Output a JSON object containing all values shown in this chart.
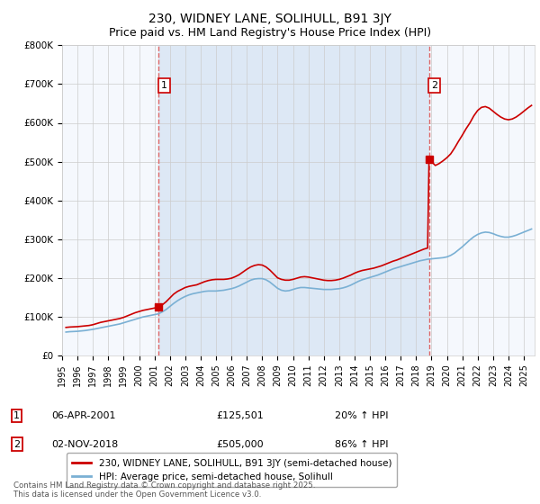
{
  "title": "230, WIDNEY LANE, SOLIHULL, B91 3JY",
  "subtitle": "Price paid vs. HM Land Registry's House Price Index (HPI)",
  "title_fontsize": 10,
  "subtitle_fontsize": 9,
  "ylim": [
    0,
    800000
  ],
  "yticks": [
    0,
    100000,
    200000,
    300000,
    400000,
    500000,
    600000,
    700000,
    800000
  ],
  "ytick_labels": [
    "£0",
    "£100K",
    "£200K",
    "£300K",
    "£400K",
    "£500K",
    "£600K",
    "£700K",
    "£800K"
  ],
  "xlim_start": 1995.0,
  "xlim_end": 2025.7,
  "sale1_x": 2001.27,
  "sale1_y": 125501,
  "sale2_x": 2018.84,
  "sale2_y": 505000,
  "sale1_label": "1",
  "sale2_label": "2",
  "line_color_property": "#cc0000",
  "line_color_hpi": "#7ab0d4",
  "background_color": "#ffffff",
  "chart_bg_color": "#f5f8fd",
  "shade_color": "#dde8f5",
  "grid_color": "#cccccc",
  "dashed_line_color": "#dd6666",
  "legend_label_property": "230, WIDNEY LANE, SOLIHULL, B91 3JY (semi-detached house)",
  "legend_label_hpi": "HPI: Average price, semi-detached house, Solihull",
  "annotation1_num": "1",
  "annotation1_date": "06-APR-2001",
  "annotation1_price": "£125,501",
  "annotation1_hpi": "20% ↑ HPI",
  "annotation2_num": "2",
  "annotation2_date": "02-NOV-2018",
  "annotation2_price": "£505,000",
  "annotation2_hpi": "86% ↑ HPI",
  "footer": "Contains HM Land Registry data © Crown copyright and database right 2025.\nThis data is licensed under the Open Government Licence v3.0.",
  "property_data": [
    [
      1995.25,
      72000
    ],
    [
      1995.5,
      73000
    ],
    [
      1995.75,
      73500
    ],
    [
      1996.0,
      74000
    ],
    [
      1996.25,
      75000
    ],
    [
      1996.5,
      76000
    ],
    [
      1996.75,
      77000
    ],
    [
      1997.0,
      79000
    ],
    [
      1997.25,
      82000
    ],
    [
      1997.5,
      85000
    ],
    [
      1997.75,
      87000
    ],
    [
      1998.0,
      89000
    ],
    [
      1998.25,
      91000
    ],
    [
      1998.5,
      93000
    ],
    [
      1998.75,
      95000
    ],
    [
      1999.0,
      98000
    ],
    [
      1999.25,
      102000
    ],
    [
      1999.5,
      106000
    ],
    [
      1999.75,
      110000
    ],
    [
      2000.0,
      113000
    ],
    [
      2000.25,
      116000
    ],
    [
      2000.5,
      118000
    ],
    [
      2000.75,
      120000
    ],
    [
      2001.0,
      122000
    ],
    [
      2001.27,
      125501
    ],
    [
      2001.5,
      130000
    ],
    [
      2001.75,
      138000
    ],
    [
      2002.0,
      148000
    ],
    [
      2002.25,
      158000
    ],
    [
      2002.5,
      165000
    ],
    [
      2002.75,
      170000
    ],
    [
      2003.0,
      175000
    ],
    [
      2003.25,
      178000
    ],
    [
      2003.5,
      180000
    ],
    [
      2003.75,
      182000
    ],
    [
      2004.0,
      186000
    ],
    [
      2004.25,
      190000
    ],
    [
      2004.5,
      193000
    ],
    [
      2004.75,
      195000
    ],
    [
      2005.0,
      196000
    ],
    [
      2005.25,
      196000
    ],
    [
      2005.5,
      196000
    ],
    [
      2005.75,
      197000
    ],
    [
      2006.0,
      199000
    ],
    [
      2006.25,
      203000
    ],
    [
      2006.5,
      208000
    ],
    [
      2006.75,
      215000
    ],
    [
      2007.0,
      222000
    ],
    [
      2007.25,
      228000
    ],
    [
      2007.5,
      232000
    ],
    [
      2007.75,
      234000
    ],
    [
      2008.0,
      233000
    ],
    [
      2008.25,
      228000
    ],
    [
      2008.5,
      220000
    ],
    [
      2008.75,
      210000
    ],
    [
      2009.0,
      200000
    ],
    [
      2009.25,
      196000
    ],
    [
      2009.5,
      194000
    ],
    [
      2009.75,
      194000
    ],
    [
      2010.0,
      196000
    ],
    [
      2010.25,
      199000
    ],
    [
      2010.5,
      202000
    ],
    [
      2010.75,
      203000
    ],
    [
      2011.0,
      202000
    ],
    [
      2011.25,
      200000
    ],
    [
      2011.5,
      198000
    ],
    [
      2011.75,
      196000
    ],
    [
      2012.0,
      194000
    ],
    [
      2012.25,
      193000
    ],
    [
      2012.5,
      193000
    ],
    [
      2012.75,
      194000
    ],
    [
      2013.0,
      196000
    ],
    [
      2013.25,
      199000
    ],
    [
      2013.5,
      203000
    ],
    [
      2013.75,
      207000
    ],
    [
      2014.0,
      212000
    ],
    [
      2014.25,
      216000
    ],
    [
      2014.5,
      219000
    ],
    [
      2014.75,
      221000
    ],
    [
      2015.0,
      223000
    ],
    [
      2015.25,
      225000
    ],
    [
      2015.5,
      228000
    ],
    [
      2015.75,
      231000
    ],
    [
      2016.0,
      235000
    ],
    [
      2016.25,
      239000
    ],
    [
      2016.5,
      243000
    ],
    [
      2016.75,
      246000
    ],
    [
      2017.0,
      250000
    ],
    [
      2017.25,
      254000
    ],
    [
      2017.5,
      258000
    ],
    [
      2017.75,
      262000
    ],
    [
      2018.0,
      266000
    ],
    [
      2018.25,
      270000
    ],
    [
      2018.5,
      274000
    ],
    [
      2018.75,
      277000
    ],
    [
      2018.84,
      505000
    ],
    [
      2019.0,
      500000
    ],
    [
      2019.25,
      490000
    ],
    [
      2019.5,
      495000
    ],
    [
      2019.75,
      502000
    ],
    [
      2020.0,
      510000
    ],
    [
      2020.25,
      520000
    ],
    [
      2020.5,
      535000
    ],
    [
      2020.75,
      552000
    ],
    [
      2021.0,
      568000
    ],
    [
      2021.25,
      585000
    ],
    [
      2021.5,
      600000
    ],
    [
      2021.75,
      618000
    ],
    [
      2022.0,
      632000
    ],
    [
      2022.25,
      640000
    ],
    [
      2022.5,
      642000
    ],
    [
      2022.75,
      638000
    ],
    [
      2023.0,
      630000
    ],
    [
      2023.25,
      622000
    ],
    [
      2023.5,
      615000
    ],
    [
      2023.75,
      610000
    ],
    [
      2024.0,
      608000
    ],
    [
      2024.25,
      610000
    ],
    [
      2024.5,
      615000
    ],
    [
      2024.75,
      622000
    ],
    [
      2025.0,
      630000
    ],
    [
      2025.25,
      638000
    ],
    [
      2025.5,
      645000
    ]
  ],
  "hpi_data": [
    [
      1995.25,
      60000
    ],
    [
      1995.5,
      61000
    ],
    [
      1995.75,
      61500
    ],
    [
      1996.0,
      62000
    ],
    [
      1996.25,
      63000
    ],
    [
      1996.5,
      64000
    ],
    [
      1996.75,
      65500
    ],
    [
      1997.0,
      67000
    ],
    [
      1997.25,
      69000
    ],
    [
      1997.5,
      71000
    ],
    [
      1997.75,
      73000
    ],
    [
      1998.0,
      75000
    ],
    [
      1998.25,
      77000
    ],
    [
      1998.5,
      79000
    ],
    [
      1998.75,
      81000
    ],
    [
      1999.0,
      84000
    ],
    [
      1999.25,
      87000
    ],
    [
      1999.5,
      90000
    ],
    [
      1999.75,
      93000
    ],
    [
      2000.0,
      96000
    ],
    [
      2000.25,
      99000
    ],
    [
      2000.5,
      101000
    ],
    [
      2000.75,
      103000
    ],
    [
      2001.0,
      105000
    ],
    [
      2001.25,
      107000
    ],
    [
      2001.5,
      112000
    ],
    [
      2001.75,
      118000
    ],
    [
      2002.0,
      126000
    ],
    [
      2002.25,
      134000
    ],
    [
      2002.5,
      141000
    ],
    [
      2002.75,
      147000
    ],
    [
      2003.0,
      152000
    ],
    [
      2003.25,
      156000
    ],
    [
      2003.5,
      159000
    ],
    [
      2003.75,
      161000
    ],
    [
      2004.0,
      163000
    ],
    [
      2004.25,
      165000
    ],
    [
      2004.5,
      166000
    ],
    [
      2004.75,
      166000
    ],
    [
      2005.0,
      166000
    ],
    [
      2005.25,
      167000
    ],
    [
      2005.5,
      168000
    ],
    [
      2005.75,
      170000
    ],
    [
      2006.0,
      172000
    ],
    [
      2006.25,
      175000
    ],
    [
      2006.5,
      179000
    ],
    [
      2006.75,
      184000
    ],
    [
      2007.0,
      189000
    ],
    [
      2007.25,
      194000
    ],
    [
      2007.5,
      197000
    ],
    [
      2007.75,
      198000
    ],
    [
      2008.0,
      198000
    ],
    [
      2008.25,
      195000
    ],
    [
      2008.5,
      189000
    ],
    [
      2008.75,
      181000
    ],
    [
      2009.0,
      173000
    ],
    [
      2009.25,
      168000
    ],
    [
      2009.5,
      166000
    ],
    [
      2009.75,
      167000
    ],
    [
      2010.0,
      170000
    ],
    [
      2010.25,
      173000
    ],
    [
      2010.5,
      175000
    ],
    [
      2010.75,
      175000
    ],
    [
      2011.0,
      174000
    ],
    [
      2011.25,
      173000
    ],
    [
      2011.5,
      172000
    ],
    [
      2011.75,
      171000
    ],
    [
      2012.0,
      170000
    ],
    [
      2012.25,
      170000
    ],
    [
      2012.5,
      170000
    ],
    [
      2012.75,
      171000
    ],
    [
      2013.0,
      172000
    ],
    [
      2013.25,
      174000
    ],
    [
      2013.5,
      177000
    ],
    [
      2013.75,
      181000
    ],
    [
      2014.0,
      186000
    ],
    [
      2014.25,
      191000
    ],
    [
      2014.5,
      195000
    ],
    [
      2014.75,
      198000
    ],
    [
      2015.0,
      201000
    ],
    [
      2015.25,
      204000
    ],
    [
      2015.5,
      207000
    ],
    [
      2015.75,
      211000
    ],
    [
      2016.0,
      215000
    ],
    [
      2016.25,
      219000
    ],
    [
      2016.5,
      223000
    ],
    [
      2016.75,
      226000
    ],
    [
      2017.0,
      229000
    ],
    [
      2017.25,
      232000
    ],
    [
      2017.5,
      235000
    ],
    [
      2017.75,
      238000
    ],
    [
      2018.0,
      241000
    ],
    [
      2018.25,
      244000
    ],
    [
      2018.5,
      246000
    ],
    [
      2018.75,
      248000
    ],
    [
      2019.0,
      249000
    ],
    [
      2019.25,
      250000
    ],
    [
      2019.5,
      251000
    ],
    [
      2019.75,
      252000
    ],
    [
      2020.0,
      254000
    ],
    [
      2020.25,
      258000
    ],
    [
      2020.5,
      264000
    ],
    [
      2020.75,
      272000
    ],
    [
      2021.0,
      280000
    ],
    [
      2021.25,
      289000
    ],
    [
      2021.5,
      298000
    ],
    [
      2021.75,
      306000
    ],
    [
      2022.0,
      312000
    ],
    [
      2022.25,
      316000
    ],
    [
      2022.5,
      318000
    ],
    [
      2022.75,
      317000
    ],
    [
      2023.0,
      314000
    ],
    [
      2023.25,
      310000
    ],
    [
      2023.5,
      307000
    ],
    [
      2023.75,
      305000
    ],
    [
      2024.0,
      305000
    ],
    [
      2024.25,
      307000
    ],
    [
      2024.5,
      310000
    ],
    [
      2024.75,
      314000
    ],
    [
      2025.0,
      318000
    ],
    [
      2025.25,
      322000
    ],
    [
      2025.5,
      326000
    ]
  ]
}
